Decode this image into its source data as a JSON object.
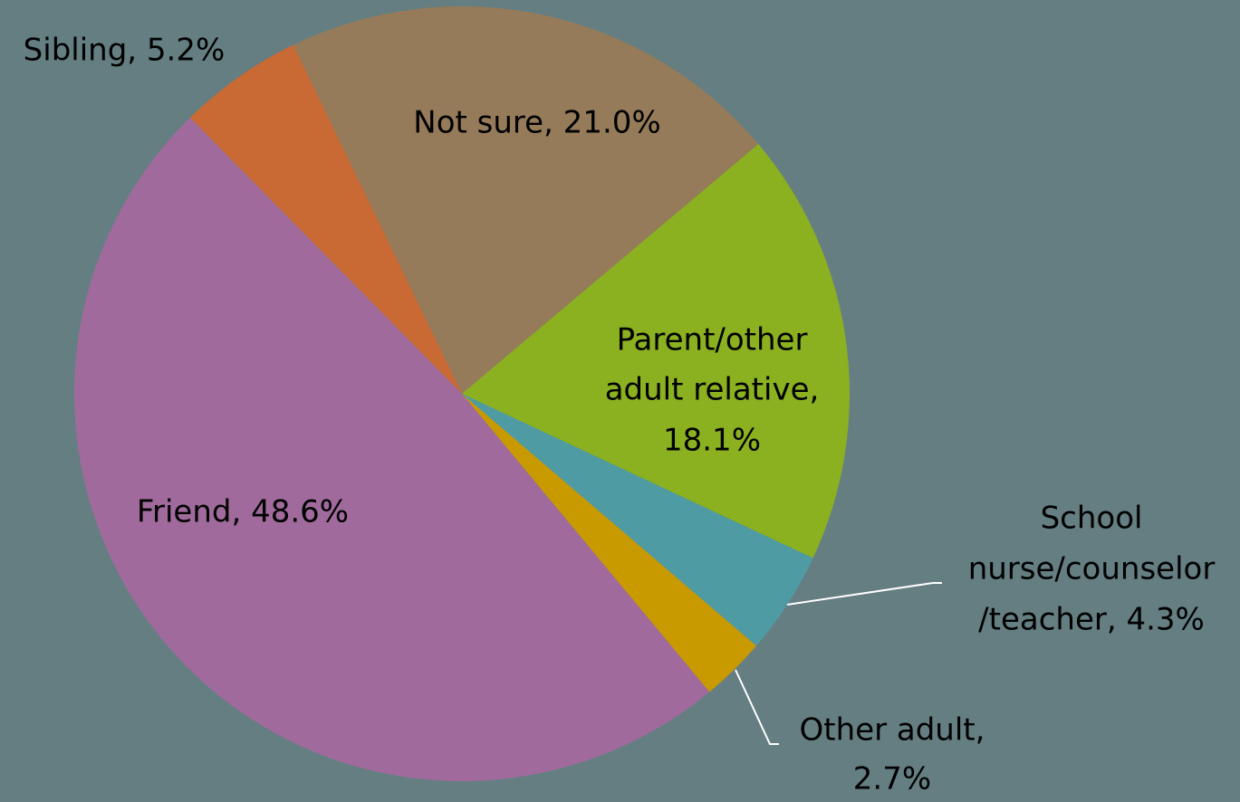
{
  "chart_data": {
    "type": "pie",
    "values": [
      21.0,
      18.1,
      4.3,
      2.7,
      48.6,
      5.2
    ],
    "value_labels": [
      [
        "Not sure, 21.0%"
      ],
      [
        "Parent/other",
        "adult relative,",
        "18.1%"
      ],
      [
        "School",
        "nurse/counselor",
        "/teacher, 4.3%"
      ],
      [
        "Other adult,",
        "2.7%"
      ],
      [
        "Friend, 48.6%"
      ],
      [
        "Sibling, 5.2%"
      ]
    ],
    "colors": [
      "#957b5a",
      "#8bb020",
      "#4f9ba4",
      "#c99a00",
      "#a06b9c",
      "#c96a35"
    ]
  }
}
